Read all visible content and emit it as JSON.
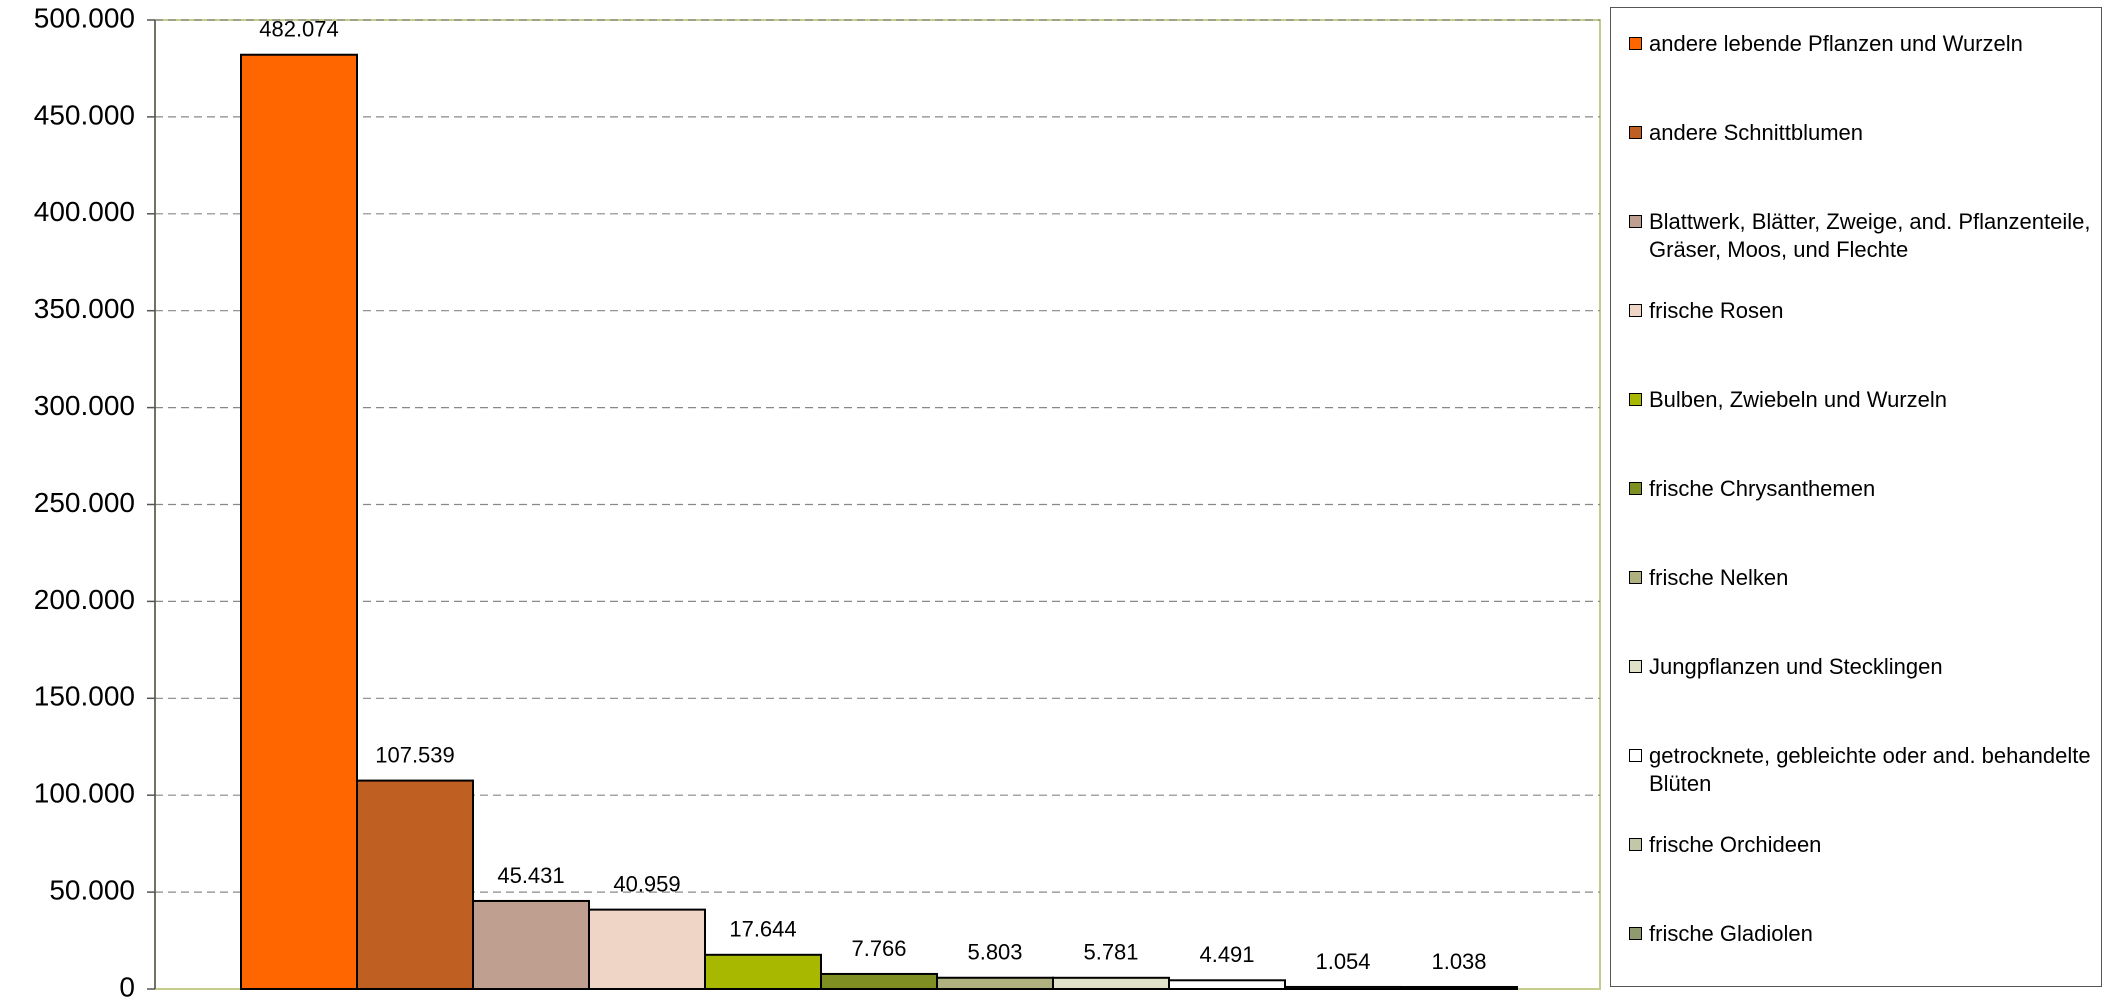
{
  "chart_data": {
    "type": "bar",
    "series": [
      {
        "name": "andere lebende Pflanzen und Wurzeln",
        "color": "#ff6600",
        "values": [
          482074
        ],
        "value_labels": [
          "482.074"
        ]
      },
      {
        "name": "andere Schnittblumen",
        "color": "#c05f22",
        "values": [
          107539
        ],
        "value_labels": [
          "107.539"
        ]
      },
      {
        "name": "Blattwerk, Blätter, Zweige, and. Pflanzenteile, Gräser, Moos, und Flechte",
        "color": "#bf9f8f",
        "values": [
          45431
        ],
        "value_labels": [
          "45.431"
        ]
      },
      {
        "name": "frische Rosen",
        "color": "#efd5c5",
        "values": [
          40959
        ],
        "value_labels": [
          "40.959"
        ]
      },
      {
        "name": "Bulben, Zwiebeln und Wurzeln",
        "color": "#a8b800",
        "values": [
          17644
        ],
        "value_labels": [
          "17.644"
        ]
      },
      {
        "name": "frische Chrysanthemen",
        "color": "#7f8f22",
        "values": [
          7766
        ],
        "value_labels": [
          "7.766"
        ]
      },
      {
        "name": "frische Nelken",
        "color": "#afb27f",
        "values": [
          5803
        ],
        "value_labels": [
          "5.803"
        ]
      },
      {
        "name": "Jungpflanzen und Stecklingen",
        "color": "#dfe2c8",
        "values": [
          5781
        ],
        "value_labels": [
          "5.781"
        ]
      },
      {
        "name": "getrocknete, gebleichte oder and. behandelte Blüten",
        "color": "#ffffff",
        "values": [
          4491
        ],
        "value_labels": [
          "4.491"
        ]
      },
      {
        "name": "frische Orchideen",
        "color": "#c2c7a8",
        "values": [
          1054
        ],
        "value_labels": [
          "1.054"
        ]
      },
      {
        "name": "frische Gladiolen",
        "color": "#8f9a6f",
        "values": [
          1038
        ],
        "value_labels": [
          "1.038"
        ]
      }
    ],
    "ylim": [
      0,
      500000
    ],
    "yticks": [
      0,
      {
        "value": 50000,
        "label": "50.000"
      },
      {
        "value": 100000,
        "label": "100.000"
      },
      {
        "value": 150000,
        "label": "150.000"
      },
      {
        "value": 200000,
        "label": "200.000"
      },
      {
        "value": 250000,
        "label": "250.000"
      },
      {
        "value": 300000,
        "label": "300.000"
      },
      {
        "value": 350000,
        "label": "350.000"
      },
      {
        "value": 400000,
        "label": "400.000"
      },
      {
        "value": 450000,
        "label": "450.000"
      },
      {
        "value": 500000,
        "label": "500.000"
      }
    ],
    "grid": true,
    "legend": "right"
  }
}
